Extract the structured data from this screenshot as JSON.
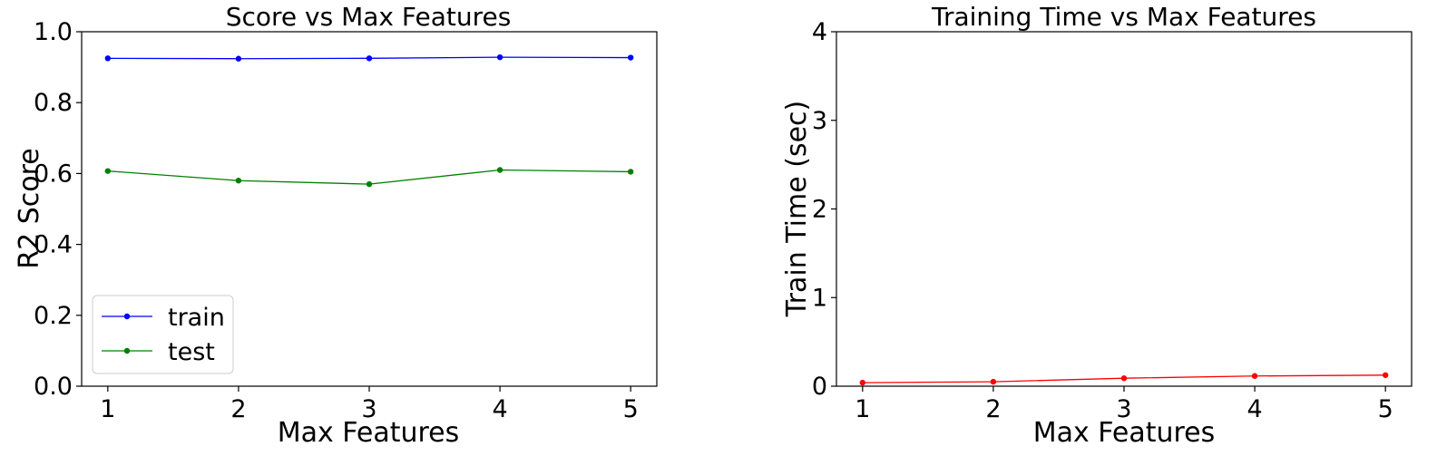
{
  "chart_data": [
    {
      "type": "line",
      "title": "Score vs Max Features",
      "xlabel": "Max Features",
      "ylabel": "R2 Score",
      "x": [
        1,
        2,
        3,
        4,
        5
      ],
      "xticks": [
        "1",
        "2",
        "3",
        "4",
        "5"
      ],
      "yticks": [
        "0.0",
        "0.2",
        "0.4",
        "0.6",
        "0.8",
        "1.0"
      ],
      "ylim": [
        0,
        1
      ],
      "grid": false,
      "legend": "lower-left",
      "series": [
        {
          "name": "train",
          "color": "#0000ff",
          "values": [
            0.925,
            0.924,
            0.925,
            0.928,
            0.927
          ]
        },
        {
          "name": "test",
          "color": "#008000",
          "values": [
            0.607,
            0.58,
            0.57,
            0.61,
            0.605
          ]
        }
      ]
    },
    {
      "type": "line",
      "title": "Training Time vs Max Features",
      "xlabel": "Max Features",
      "ylabel": "Train Time (sec)",
      "x": [
        1,
        2,
        3,
        4,
        5
      ],
      "xticks": [
        "1",
        "2",
        "3",
        "4",
        "5"
      ],
      "yticks": [
        "0",
        "1",
        "2",
        "3",
        "4"
      ],
      "ylim": [
        0,
        4
      ],
      "grid": false,
      "series": [
        {
          "color": "#ff0000",
          "values": [
            0.04,
            0.05,
            0.09,
            0.115,
            0.125
          ]
        }
      ]
    }
  ]
}
